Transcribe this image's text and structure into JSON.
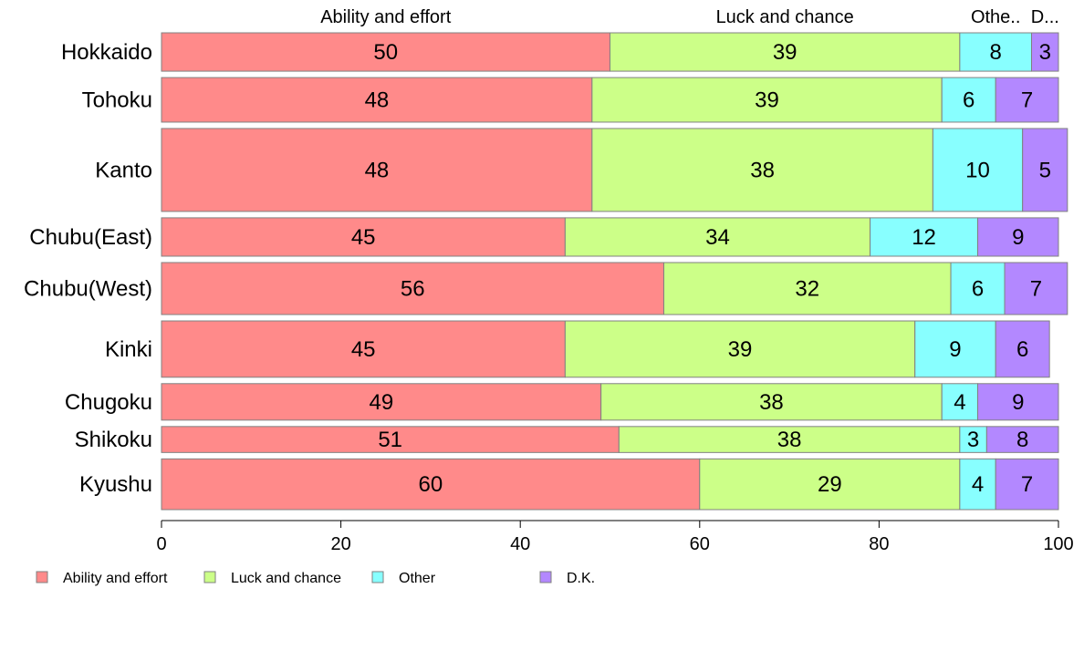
{
  "chart_data": {
    "type": "bar",
    "orientation": "horizontal",
    "stacked": true,
    "variable_width": true,
    "categories": [
      "Hokkaido",
      "Tohoku",
      "Kanto",
      "Chubu(East)",
      "Chubu(West)",
      "Kinki",
      "Chugoku",
      "Shikoku",
      "Kyushu"
    ],
    "series": [
      {
        "name": "Ability and effort",
        "color": "#ff8a8a",
        "values": [
          50,
          48,
          48,
          45,
          56,
          45,
          49,
          51,
          60
        ]
      },
      {
        "name": "Luck and chance",
        "color": "#ccff88",
        "values": [
          39,
          39,
          38,
          34,
          32,
          39,
          38,
          38,
          29
        ]
      },
      {
        "name": "Other",
        "color": "#88ffff",
        "values": [
          8,
          6,
          10,
          12,
          6,
          9,
          4,
          3,
          4
        ]
      },
      {
        "name": "D.K.",
        "color": "#b388ff",
        "values": [
          3,
          7,
          5,
          9,
          7,
          6,
          9,
          8,
          7
        ]
      }
    ],
    "top_labels": [
      "Ability and effort",
      "Luck and chance",
      "Othe..",
      "D..."
    ],
    "row_weights": [
      0.62,
      0.72,
      1.34,
      0.62,
      0.84,
      0.91,
      0.59,
      0.42,
      0.82
    ],
    "xlim": [
      0,
      100
    ],
    "xticks": [
      "0",
      "20",
      "40",
      "60",
      "80",
      "100"
    ],
    "xlabel": "",
    "ylabel": "",
    "title": "",
    "grid": false,
    "legend_position": "bottom-left"
  }
}
